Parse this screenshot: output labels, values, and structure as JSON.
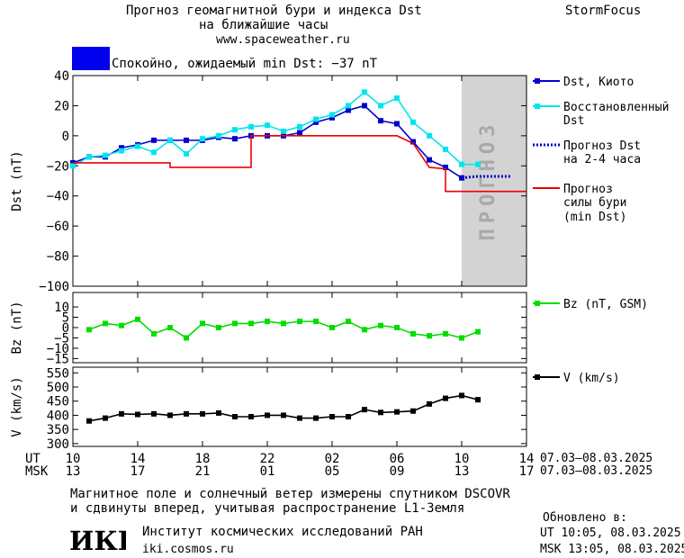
{
  "header": {
    "title_line1": "Прогноз геомагнитной бури и индекса Dst",
    "title_line2": "на ближайшие часы",
    "url": "www.spaceweather.ru",
    "brand": "StormFocus",
    "status_text": "Спокойно, ожидаемый min Dst: −37 nT",
    "status_color": "#0000ee"
  },
  "forecast_band_label": "ПРОГНОЗ",
  "legend": {
    "dst_kyoto": "Dst, Киото",
    "restored_l1": "Восстановленный",
    "restored_l2": "Dst",
    "forecast_l1": "Прогноз Dst",
    "forecast_l2": "на 2-4 часа",
    "storm_l1": "Прогноз",
    "storm_l2": "силы бури",
    "storm_l3": "(min Dst)",
    "bz": "Bz (nT, GSM)",
    "v": "V (km/s)"
  },
  "time_axis": {
    "ut_label": "UT",
    "msk_label": "MSK",
    "ut_ticks": [
      "10",
      "14",
      "18",
      "22",
      "02",
      "06",
      "10",
      "14"
    ],
    "msk_ticks": [
      "13",
      "17",
      "21",
      "01",
      "05",
      "09",
      "13",
      "17"
    ],
    "ut_range": "07.03–08.03.2025",
    "msk_range": "07.03–08.03.2025"
  },
  "footer": {
    "note_line1": "Магнитное поле и солнечный ветер измерены спутником DSCOVR",
    "note_line2": "и сдвинуты вперед, учитывая распространение L1-Земля",
    "institute": "Институт космических исследований РАН",
    "site": "iki.cosmos.ru",
    "logo_text": "ИКИ",
    "updated_label": "Обновлено в:",
    "updated_ut": "UT  10:05, 08.03.2025",
    "updated_msk": "MSK 13:05, 08.03.2025"
  },
  "chart_data": [
    {
      "type": "line",
      "ylabel": "Dst (nT)",
      "ylim": [
        -100,
        40
      ],
      "yticks": [
        40,
        20,
        0,
        -20,
        -40,
        -60,
        -80,
        -100
      ],
      "xlim_hours": [
        0,
        28
      ],
      "forecast_band_hours": [
        24,
        28
      ],
      "series": [
        {
          "name": "Dst, Киото",
          "color": "#0000cc",
          "x": [
            0,
            1,
            2,
            3,
            4,
            5,
            6,
            7,
            8,
            9,
            10,
            11,
            12,
            13,
            14,
            15,
            16,
            17,
            18,
            19,
            20,
            21,
            22,
            23,
            24
          ],
          "y": [
            -18,
            -14,
            -14,
            -8,
            -6,
            -3,
            -3,
            -3,
            -3,
            -1,
            -2,
            0,
            0,
            0,
            2,
            9,
            12,
            17,
            20,
            10,
            8,
            -4,
            -16,
            -21,
            -28
          ]
        },
        {
          "name": "Восстановленный Dst",
          "color": "#00e5ee",
          "x": [
            0,
            1,
            2,
            3,
            4,
            5,
            6,
            7,
            8,
            9,
            10,
            11,
            12,
            13,
            14,
            15,
            16,
            17,
            18,
            19,
            20,
            21,
            22,
            23,
            24,
            25
          ],
          "y": [
            -20,
            -14,
            -13,
            -10,
            -7,
            -11,
            -3,
            -12,
            -2,
            0,
            4,
            6,
            7,
            3,
            6,
            11,
            14,
            20,
            29,
            20,
            25,
            9,
            0,
            -9,
            -19,
            -19
          ]
        },
        {
          "name": "Прогноз Dst на 2-4 часа",
          "color": "#0000cc",
          "x": [
            24,
            25,
            26,
            27
          ],
          "y": [
            -28,
            -27,
            -27,
            -27
          ]
        },
        {
          "name": "Прогноз силы бури (min Dst)",
          "color": "#ee0000",
          "x": [
            0,
            6,
            6,
            11,
            11,
            12,
            12,
            20,
            20,
            21,
            21,
            22,
            22,
            23,
            23,
            28
          ],
          "y": [
            -18,
            -18,
            -21,
            -21,
            0,
            0,
            0,
            0,
            0,
            -5,
            -5,
            -21,
            -21,
            -22,
            -37,
            -37
          ]
        }
      ]
    },
    {
      "type": "line",
      "ylabel": "Bz (nT)",
      "ylim": [
        -17,
        17
      ],
      "yticks": [
        10,
        5,
        0,
        -5,
        -10,
        -15
      ],
      "series": [
        {
          "name": "Bz (nT, GSM)",
          "color": "#00dd00",
          "x": [
            1,
            2,
            3,
            4,
            5,
            6,
            7,
            8,
            9,
            10,
            11,
            12,
            13,
            14,
            15,
            16,
            17,
            18,
            19,
            20,
            21,
            22,
            23,
            24,
            25
          ],
          "y": [
            -1,
            2,
            1,
            4,
            -3,
            0,
            -5,
            2,
            0,
            2,
            2,
            3,
            2,
            3,
            3,
            0,
            3,
            -1,
            1,
            0,
            -3,
            -4,
            -3,
            -5,
            -2
          ]
        }
      ]
    },
    {
      "type": "line",
      "ylabel": "V (km/s)",
      "ylim": [
        290,
        570
      ],
      "yticks": [
        550,
        500,
        450,
        400,
        350,
        300
      ],
      "series": [
        {
          "name": "V (km/s)",
          "color": "#000000",
          "x": [
            1,
            2,
            3,
            4,
            5,
            6,
            7,
            8,
            9,
            10,
            11,
            12,
            13,
            14,
            15,
            16,
            17,
            18,
            19,
            20,
            21,
            22,
            23,
            24,
            25
          ],
          "y": [
            380,
            390,
            405,
            403,
            405,
            400,
            405,
            405,
            408,
            395,
            395,
            400,
            400,
            390,
            390,
            395,
            395,
            420,
            410,
            412,
            415,
            440,
            460,
            470,
            455
          ]
        }
      ]
    }
  ]
}
